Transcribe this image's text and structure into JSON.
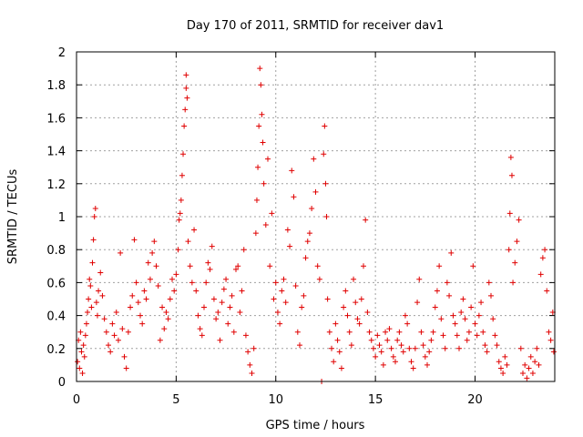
{
  "chart_data": {
    "type": "scatter",
    "title": "Day 170 of 2011, SRMTID for receiver dav1",
    "xlabel": "GPS time / hours",
    "ylabel": "SRMTID / TECUs",
    "xlim": [
      0,
      24
    ],
    "ylim": [
      0,
      2
    ],
    "xticks": [
      "0",
      "5",
      "10",
      "15",
      "20"
    ],
    "xtick_values": [
      0,
      5,
      10,
      15,
      20
    ],
    "yticks": [
      "0",
      "0.2",
      "0.4",
      "0.6",
      "0.8",
      "1",
      "1.2",
      "1.4",
      "1.6",
      "1.8",
      "2"
    ],
    "ytick_values": [
      0,
      0.2,
      0.4,
      0.6,
      0.8,
      1,
      1.2,
      1.4,
      1.6,
      1.8,
      2
    ],
    "grid": true,
    "marker": "+",
    "color": "#e00000",
    "series": [
      {
        "name": "SRMTID",
        "points": [
          [
            0.05,
            0.12
          ],
          [
            0.1,
            0.25
          ],
          [
            0.15,
            0.08
          ],
          [
            0.2,
            0.3
          ],
          [
            0.25,
            0.18
          ],
          [
            0.3,
            0.05
          ],
          [
            0.35,
            0.22
          ],
          [
            0.4,
            0.15
          ],
          [
            0.45,
            0.28
          ],
          [
            0.5,
            0.35
          ],
          [
            0.55,
            0.42
          ],
          [
            0.6,
            0.5
          ],
          [
            0.65,
            0.62
          ],
          [
            0.7,
            0.58
          ],
          [
            0.75,
            0.45
          ],
          [
            0.8,
            0.72
          ],
          [
            0.85,
            0.86
          ],
          [
            0.9,
            1.0
          ],
          [
            0.95,
            1.05
          ],
          [
            1.0,
            0.48
          ],
          [
            1.05,
            0.4
          ],
          [
            1.1,
            0.55
          ],
          [
            1.2,
            0.66
          ],
          [
            1.3,
            0.52
          ],
          [
            1.4,
            0.38
          ],
          [
            1.5,
            0.3
          ],
          [
            1.6,
            0.22
          ],
          [
            1.7,
            0.18
          ],
          [
            1.8,
            0.35
          ],
          [
            1.9,
            0.28
          ],
          [
            2.0,
            0.42
          ],
          [
            2.1,
            0.25
          ],
          [
            2.2,
            0.78
          ],
          [
            2.3,
            0.32
          ],
          [
            2.4,
            0.15
          ],
          [
            2.5,
            0.08
          ],
          [
            2.6,
            0.3
          ],
          [
            2.7,
            0.45
          ],
          [
            2.8,
            0.52
          ],
          [
            2.9,
            0.86
          ],
          [
            3.0,
            0.6
          ],
          [
            3.1,
            0.48
          ],
          [
            3.2,
            0.4
          ],
          [
            3.3,
            0.35
          ],
          [
            3.4,
            0.55
          ],
          [
            3.5,
            0.5
          ],
          [
            3.6,
            0.72
          ],
          [
            3.7,
            0.62
          ],
          [
            3.8,
            0.78
          ],
          [
            3.9,
            0.85
          ],
          [
            4.0,
            0.7
          ],
          [
            4.1,
            0.58
          ],
          [
            4.2,
            0.25
          ],
          [
            4.3,
            0.45
          ],
          [
            4.4,
            0.32
          ],
          [
            4.5,
            0.42
          ],
          [
            4.6,
            0.38
          ],
          [
            4.7,
            0.5
          ],
          [
            4.8,
            0.62
          ],
          [
            4.9,
            0.55
          ],
          [
            5.0,
            0.65
          ],
          [
            5.1,
            0.8
          ],
          [
            5.15,
            0.98
          ],
          [
            5.2,
            1.02
          ],
          [
            5.25,
            1.1
          ],
          [
            5.3,
            1.25
          ],
          [
            5.35,
            1.38
          ],
          [
            5.4,
            1.55
          ],
          [
            5.45,
            1.65
          ],
          [
            5.5,
            1.78
          ],
          [
            5.5,
            1.86
          ],
          [
            5.55,
            1.72
          ],
          [
            5.6,
            0.85
          ],
          [
            5.7,
            0.7
          ],
          [
            5.8,
            0.6
          ],
          [
            5.9,
            0.92
          ],
          [
            6.0,
            0.55
          ],
          [
            6.1,
            0.4
          ],
          [
            6.2,
            0.32
          ],
          [
            6.3,
            0.28
          ],
          [
            6.4,
            0.45
          ],
          [
            6.5,
            0.6
          ],
          [
            6.6,
            0.72
          ],
          [
            6.7,
            0.68
          ],
          [
            6.8,
            0.82
          ],
          [
            6.9,
            0.5
          ],
          [
            7.0,
            0.38
          ],
          [
            7.1,
            0.42
          ],
          [
            7.2,
            0.25
          ],
          [
            7.3,
            0.48
          ],
          [
            7.4,
            0.56
          ],
          [
            7.5,
            0.62
          ],
          [
            7.6,
            0.35
          ],
          [
            7.7,
            0.45
          ],
          [
            7.8,
            0.52
          ],
          [
            7.9,
            0.3
          ],
          [
            8.0,
            0.68
          ],
          [
            8.1,
            0.7
          ],
          [
            8.2,
            0.42
          ],
          [
            8.3,
            0.55
          ],
          [
            8.4,
            0.8
          ],
          [
            8.5,
            0.28
          ],
          [
            8.6,
            0.18
          ],
          [
            8.7,
            0.1
          ],
          [
            8.8,
            0.05
          ],
          [
            8.9,
            0.2
          ],
          [
            9.0,
            0.9
          ],
          [
            9.05,
            1.1
          ],
          [
            9.1,
            1.3
          ],
          [
            9.15,
            1.55
          ],
          [
            9.2,
            1.9
          ],
          [
            9.25,
            1.8
          ],
          [
            9.3,
            1.62
          ],
          [
            9.35,
            1.45
          ],
          [
            9.4,
            1.2
          ],
          [
            9.5,
            0.95
          ],
          [
            9.6,
            1.35
          ],
          [
            9.7,
            0.7
          ],
          [
            9.8,
            1.02
          ],
          [
            9.9,
            0.5
          ],
          [
            10.0,
            0.6
          ],
          [
            10.1,
            0.42
          ],
          [
            10.2,
            0.35
          ],
          [
            10.3,
            0.55
          ],
          [
            10.4,
            0.62
          ],
          [
            10.5,
            0.48
          ],
          [
            10.6,
            0.92
          ],
          [
            10.7,
            0.82
          ],
          [
            10.8,
            1.28
          ],
          [
            10.9,
            1.12
          ],
          [
            11.0,
            0.58
          ],
          [
            11.1,
            0.3
          ],
          [
            11.2,
            0.22
          ],
          [
            11.3,
            0.45
          ],
          [
            11.4,
            0.52
          ],
          [
            11.5,
            0.75
          ],
          [
            11.6,
            0.85
          ],
          [
            11.7,
            0.9
          ],
          [
            11.8,
            1.05
          ],
          [
            11.9,
            1.35
          ],
          [
            12.0,
            1.15
          ],
          [
            12.1,
            0.7
          ],
          [
            12.2,
            0.62
          ],
          [
            12.3,
            0.0
          ],
          [
            12.4,
            1.38
          ],
          [
            12.45,
            1.55
          ],
          [
            12.5,
            1.2
          ],
          [
            12.55,
            1.0
          ],
          [
            12.6,
            0.5
          ],
          [
            12.7,
            0.3
          ],
          [
            12.8,
            0.2
          ],
          [
            12.9,
            0.12
          ],
          [
            13.0,
            0.35
          ],
          [
            13.1,
            0.25
          ],
          [
            13.2,
            0.18
          ],
          [
            13.3,
            0.08
          ],
          [
            13.4,
            0.45
          ],
          [
            13.5,
            0.55
          ],
          [
            13.6,
            0.4
          ],
          [
            13.7,
            0.3
          ],
          [
            13.8,
            0.22
          ],
          [
            13.9,
            0.62
          ],
          [
            14.0,
            0.48
          ],
          [
            14.1,
            0.38
          ],
          [
            14.2,
            0.35
          ],
          [
            14.3,
            0.5
          ],
          [
            14.4,
            0.7
          ],
          [
            14.5,
            0.98
          ],
          [
            14.6,
            0.42
          ],
          [
            14.7,
            0.3
          ],
          [
            14.8,
            0.25
          ],
          [
            14.9,
            0.2
          ],
          [
            15.0,
            0.15
          ],
          [
            15.1,
            0.28
          ],
          [
            15.2,
            0.22
          ],
          [
            15.3,
            0.18
          ],
          [
            15.4,
            0.1
          ],
          [
            15.5,
            0.3
          ],
          [
            15.6,
            0.25
          ],
          [
            15.7,
            0.32
          ],
          [
            15.8,
            0.2
          ],
          [
            15.9,
            0.15
          ],
          [
            16.0,
            0.12
          ],
          [
            16.1,
            0.25
          ],
          [
            16.2,
            0.3
          ],
          [
            16.3,
            0.22
          ],
          [
            16.4,
            0.18
          ],
          [
            16.5,
            0.4
          ],
          [
            16.6,
            0.35
          ],
          [
            16.7,
            0.2
          ],
          [
            16.8,
            0.12
          ],
          [
            16.9,
            0.08
          ],
          [
            17.0,
            0.2
          ],
          [
            17.1,
            0.48
          ],
          [
            17.2,
            0.62
          ],
          [
            17.3,
            0.3
          ],
          [
            17.4,
            0.22
          ],
          [
            17.5,
            0.15
          ],
          [
            17.6,
            0.1
          ],
          [
            17.7,
            0.18
          ],
          [
            17.8,
            0.25
          ],
          [
            17.9,
            0.3
          ],
          [
            18.0,
            0.45
          ],
          [
            18.1,
            0.55
          ],
          [
            18.2,
            0.7
          ],
          [
            18.3,
            0.38
          ],
          [
            18.4,
            0.28
          ],
          [
            18.5,
            0.2
          ],
          [
            18.6,
            0.6
          ],
          [
            18.7,
            0.52
          ],
          [
            18.8,
            0.78
          ],
          [
            18.9,
            0.4
          ],
          [
            19.0,
            0.35
          ],
          [
            19.1,
            0.28
          ],
          [
            19.2,
            0.2
          ],
          [
            19.3,
            0.42
          ],
          [
            19.4,
            0.5
          ],
          [
            19.5,
            0.38
          ],
          [
            19.6,
            0.25
          ],
          [
            19.7,
            0.3
          ],
          [
            19.8,
            0.45
          ],
          [
            19.9,
            0.7
          ],
          [
            20.0,
            0.35
          ],
          [
            20.1,
            0.28
          ],
          [
            20.2,
            0.4
          ],
          [
            20.3,
            0.48
          ],
          [
            20.4,
            0.3
          ],
          [
            20.5,
            0.22
          ],
          [
            20.6,
            0.18
          ],
          [
            20.7,
            0.6
          ],
          [
            20.8,
            0.52
          ],
          [
            20.9,
            0.38
          ],
          [
            21.0,
            0.28
          ],
          [
            21.1,
            0.22
          ],
          [
            21.2,
            0.12
          ],
          [
            21.3,
            0.08
          ],
          [
            21.4,
            0.05
          ],
          [
            21.5,
            0.15
          ],
          [
            21.6,
            0.1
          ],
          [
            21.7,
            0.8
          ],
          [
            21.75,
            1.02
          ],
          [
            21.8,
            1.36
          ],
          [
            21.85,
            1.25
          ],
          [
            21.9,
            0.6
          ],
          [
            22.0,
            0.72
          ],
          [
            22.1,
            0.85
          ],
          [
            22.2,
            0.98
          ],
          [
            22.3,
            0.2
          ],
          [
            22.4,
            0.05
          ],
          [
            22.5,
            0.1
          ],
          [
            22.6,
            0.02
          ],
          [
            22.7,
            0.08
          ],
          [
            22.8,
            0.15
          ],
          [
            22.9,
            0.05
          ],
          [
            23.0,
            0.12
          ],
          [
            23.1,
            0.2
          ],
          [
            23.2,
            0.1
          ],
          [
            23.3,
            0.65
          ],
          [
            23.4,
            0.75
          ],
          [
            23.5,
            0.8
          ],
          [
            23.6,
            0.55
          ],
          [
            23.7,
            0.3
          ],
          [
            23.8,
            0.25
          ],
          [
            23.9,
            0.42
          ],
          [
            23.95,
            0.18
          ]
        ]
      }
    ]
  }
}
